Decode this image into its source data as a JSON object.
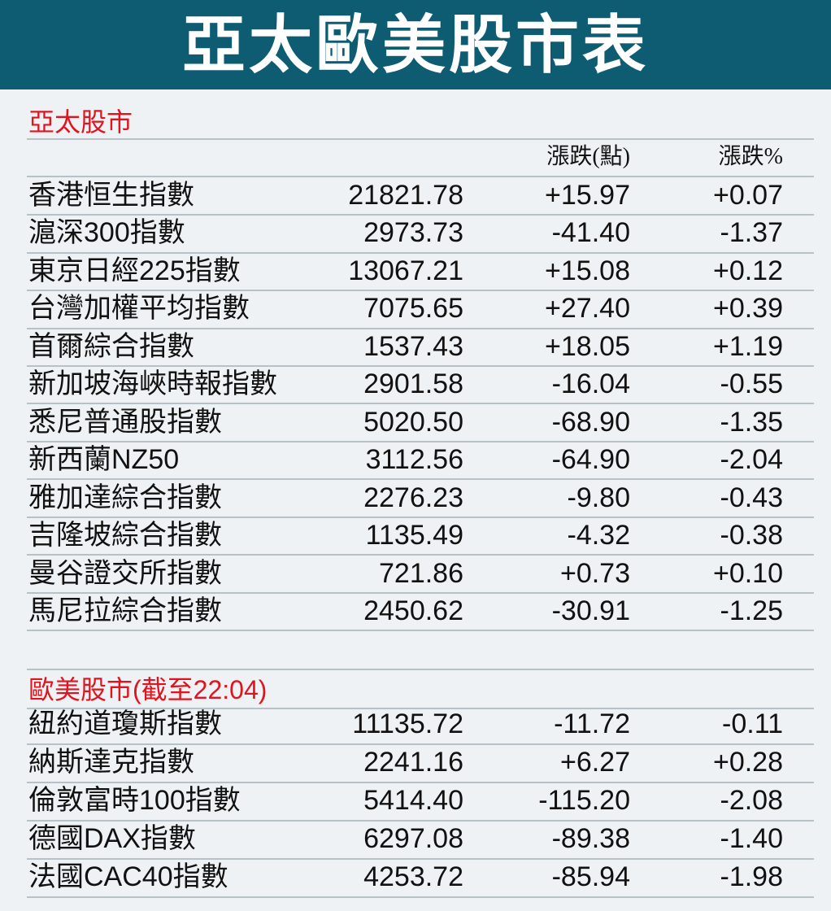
{
  "header": {
    "title": "亞太歐美股市表"
  },
  "sections": [
    {
      "title": "亞太股市",
      "columns": [
        "漲跌(點)",
        "漲跌%"
      ],
      "rows": [
        [
          "香港恒生指數",
          "21821.78",
          "+15.97",
          "+0.07"
        ],
        [
          "滬深300指數",
          "2973.73",
          "-41.40",
          "-1.37"
        ],
        [
          "東京日經225指數",
          "13067.21",
          "+15.08",
          "+0.12"
        ],
        [
          "台灣加權平均指數",
          "7075.65",
          "+27.40",
          "+0.39"
        ],
        [
          "首爾綜合指數",
          "1537.43",
          "+18.05",
          "+1.19"
        ],
        [
          "新加坡海峽時報指數",
          "2901.58",
          "-16.04",
          "-0.55"
        ],
        [
          "悉尼普通股指數",
          "5020.50",
          "-68.90",
          "-1.35"
        ],
        [
          "新西蘭NZ50",
          "3112.56",
          "-64.90",
          "-2.04"
        ],
        [
          "雅加達綜合指數",
          "2276.23",
          "-9.80",
          "-0.43"
        ],
        [
          "吉隆坡綜合指數",
          "1135.49",
          "-4.32",
          "-0.38"
        ],
        [
          "曼谷證交所指數",
          "721.86",
          "+0.73",
          "+0.10"
        ],
        [
          "馬尼拉綜合指數",
          "2450.62",
          "-30.91",
          "-1.25"
        ]
      ]
    },
    {
      "title": "歐美股市(截至22:04)",
      "rows": [
        [
          "紐約道瓊斯指數",
          "11135.72",
          "-11.72",
          "-0.11"
        ],
        [
          "納斯達克指數",
          "2241.16",
          "+6.27",
          "+0.28"
        ],
        [
          "倫敦富時100指數",
          "5414.40",
          "-115.20",
          "-2.08"
        ],
        [
          "德國DAX指數",
          "6297.08",
          "-89.38",
          "-1.40"
        ],
        [
          "法國CAC40指數",
          "4253.72",
          "-85.94",
          "-1.98"
        ]
      ]
    }
  ]
}
